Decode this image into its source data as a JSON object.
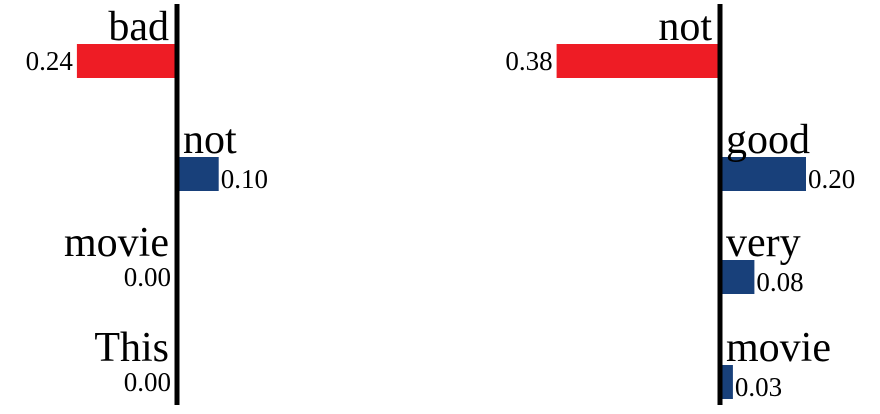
{
  "chart_data": [
    {
      "type": "bar",
      "orientation": "horizontal-diverging",
      "categories": [
        "bad",
        "not",
        "movie",
        "This"
      ],
      "values": [
        -0.24,
        0.1,
        0.0,
        0.0
      ],
      "labels": [
        "0.24",
        "0.10",
        "0.00",
        "0.00"
      ],
      "title": "",
      "xlabel": "",
      "ylabel": ""
    },
    {
      "type": "bar",
      "orientation": "horizontal-diverging",
      "categories": [
        "not",
        "good",
        "very",
        "movie"
      ],
      "values": [
        -0.38,
        0.2,
        0.08,
        0.03
      ],
      "labels": [
        "0.38",
        "0.20",
        "0.08",
        "0.03"
      ],
      "title": "",
      "xlabel": "",
      "ylabel": ""
    }
  ],
  "colors": {
    "negative": "#ee1c25",
    "positive": "#18407a",
    "axis": "#000000"
  }
}
